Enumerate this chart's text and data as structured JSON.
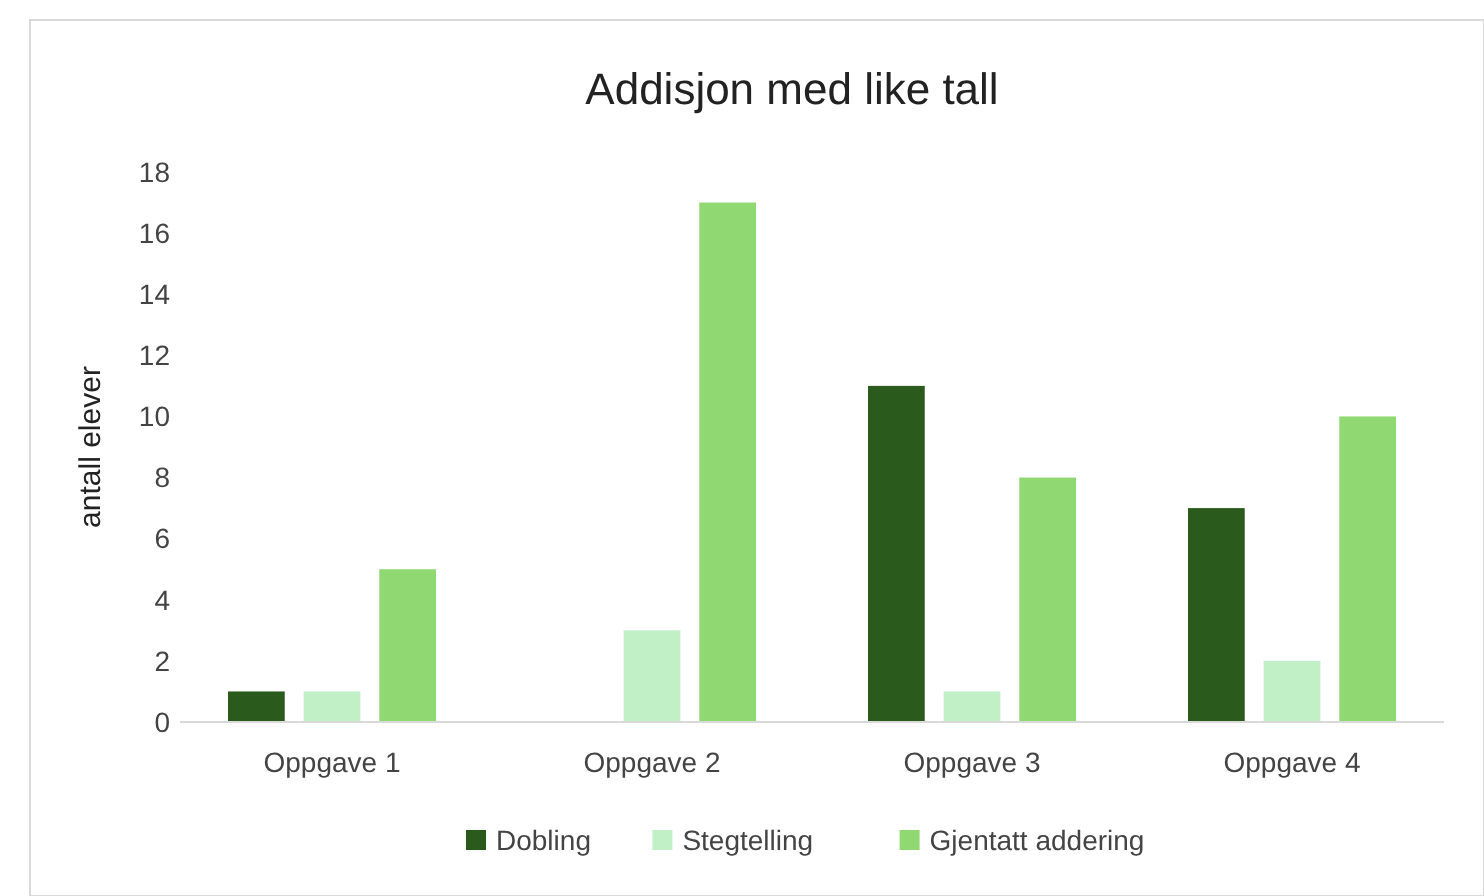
{
  "chart_data": {
    "type": "bar",
    "title": "Addisjon med like tall",
    "ylabel": "antall elever",
    "categories": [
      "Oppgave 1",
      "Oppgave 2",
      "Oppgave 3",
      "Oppgave 4"
    ],
    "series": [
      {
        "name": "Dobling",
        "color": "#2a5a1c",
        "values": [
          1,
          0,
          11,
          7
        ]
      },
      {
        "name": "Stegtelling",
        "color": "#c1efc6",
        "values": [
          1,
          3,
          1,
          2
        ]
      },
      {
        "name": "Gjentatt addering",
        "color": "#8fd872",
        "values": [
          5,
          17,
          8,
          10
        ]
      }
    ],
    "ylim": [
      0,
      18
    ],
    "yticks": [
      0,
      2,
      4,
      6,
      8,
      10,
      12,
      14,
      16,
      18
    ],
    "grid": false,
    "legend": "bottom"
  }
}
